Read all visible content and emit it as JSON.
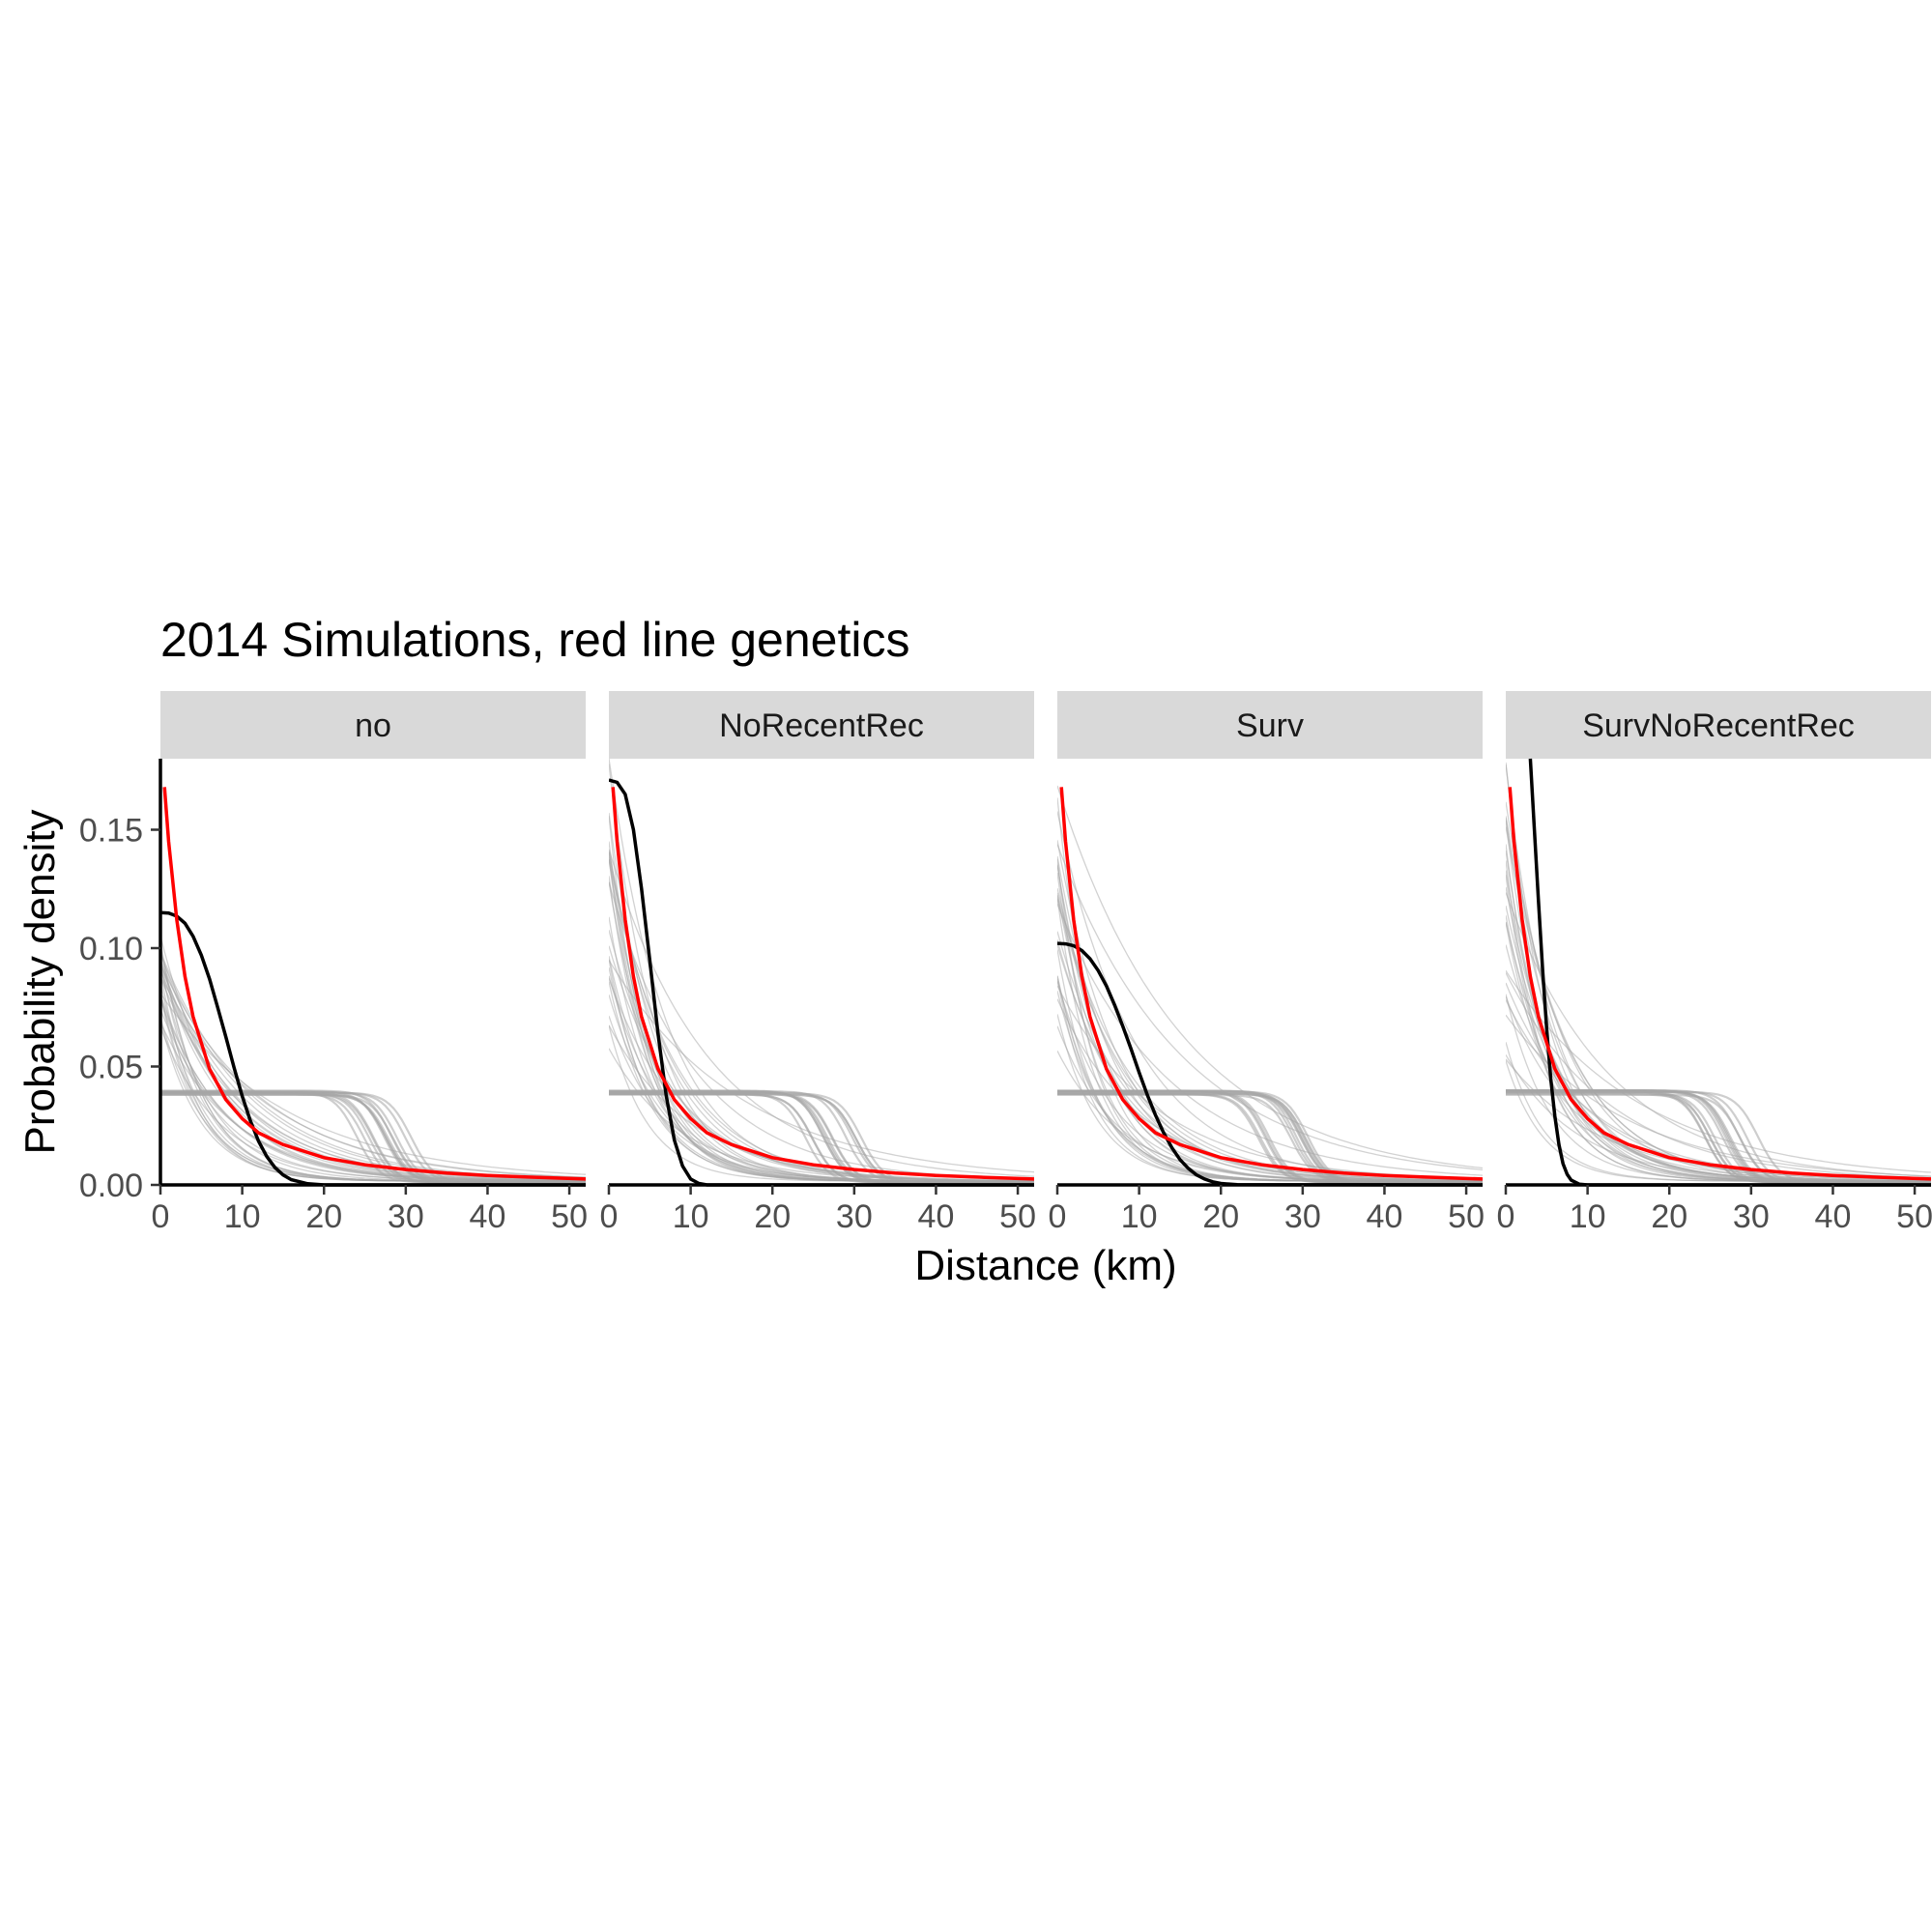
{
  "chart_data": {
    "type": "line",
    "title": "2014 Simulations, red line genetics",
    "xlabel": "Distance (km)",
    "ylabel": "Probability density",
    "xlim": [
      0,
      52
    ],
    "ylim": [
      0,
      0.18
    ],
    "x_ticks": [
      0,
      10,
      20,
      30,
      40,
      50
    ],
    "x_tick_labels": [
      "0",
      "10",
      "20",
      "30",
      "40",
      "50"
    ],
    "y_ticks": [
      0,
      0.05,
      0.1,
      0.15
    ],
    "y_tick_labels": [
      "0.00",
      "0.05",
      "0.10",
      "0.15"
    ],
    "grid": false,
    "legend": "none",
    "colors": {
      "genetics": "#ff0000",
      "fit": "#000000",
      "sims": "#a6a6a6",
      "strip": "#d9d9d9"
    },
    "genetics_curve": {
      "x": [
        0.5,
        1,
        2,
        3,
        4,
        6,
        8,
        10,
        12,
        15,
        20,
        25,
        30,
        35,
        40,
        45,
        52
      ],
      "y": [
        0.168,
        0.145,
        0.112,
        0.088,
        0.071,
        0.049,
        0.036,
        0.028,
        0.022,
        0.017,
        0.0115,
        0.0085,
        0.0065,
        0.005,
        0.004,
        0.0033,
        0.0025
      ]
    },
    "panels": [
      {
        "label": "no",
        "fit_curve": {
          "x": [
            0,
            1,
            2,
            3,
            4,
            5,
            6,
            7,
            8,
            9,
            10,
            11,
            12,
            13,
            14,
            15,
            16,
            18,
            20,
            52
          ],
          "y": [
            0.115,
            0.1148,
            0.1135,
            0.1105,
            0.105,
            0.097,
            0.087,
            0.075,
            0.0625,
            0.0495,
            0.0375,
            0.027,
            0.0185,
            0.012,
            0.0073,
            0.0042,
            0.0022,
            0.0005,
            0,
            0
          ]
        },
        "sim_peak_range": [
          0.06,
          0.105
        ]
      },
      {
        "label": "NoRecentRec",
        "fit_curve": {
          "x": [
            0,
            1,
            2,
            3,
            4,
            5,
            6,
            7,
            8,
            9,
            10,
            11,
            12,
            52
          ],
          "y": [
            0.171,
            0.17,
            0.165,
            0.15,
            0.125,
            0.095,
            0.064,
            0.038,
            0.019,
            0.008,
            0.0025,
            0.0006,
            0,
            0
          ]
        },
        "sim_peak_range": [
          0.055,
          0.18
        ]
      },
      {
        "label": "Surv",
        "fit_curve": {
          "x": [
            0,
            1,
            2,
            3,
            4,
            5,
            6,
            7,
            8,
            9,
            10,
            11,
            12,
            13,
            14,
            15,
            16,
            17,
            18,
            19,
            20,
            22,
            52
          ],
          "y": [
            0.102,
            0.1018,
            0.101,
            0.099,
            0.0955,
            0.0905,
            0.084,
            0.076,
            0.067,
            0.0575,
            0.0475,
            0.038,
            0.0295,
            0.022,
            0.0157,
            0.0107,
            0.007,
            0.0043,
            0.0025,
            0.0013,
            0.0006,
            0.0001,
            0
          ]
        },
        "sim_peak_range": [
          0.05,
          0.17
        ]
      },
      {
        "label": "SurvNoRecentRec",
        "fit_curve": {
          "x": [
            3,
            3.5,
            4,
            4.5,
            5,
            5.5,
            6,
            6.5,
            7,
            7.5,
            8,
            9,
            10,
            52
          ],
          "y": [
            0.18,
            0.15,
            0.12,
            0.091,
            0.066,
            0.045,
            0.029,
            0.017,
            0.009,
            0.0045,
            0.002,
            0.0003,
            0,
            0
          ]
        },
        "sim_peak_range": [
          0.045,
          0.18
        ]
      }
    ],
    "sim_plateau": 0.038,
    "sim_plateau_end_range": [
      24,
      31
    ],
    "sim_curve_count": 30
  }
}
